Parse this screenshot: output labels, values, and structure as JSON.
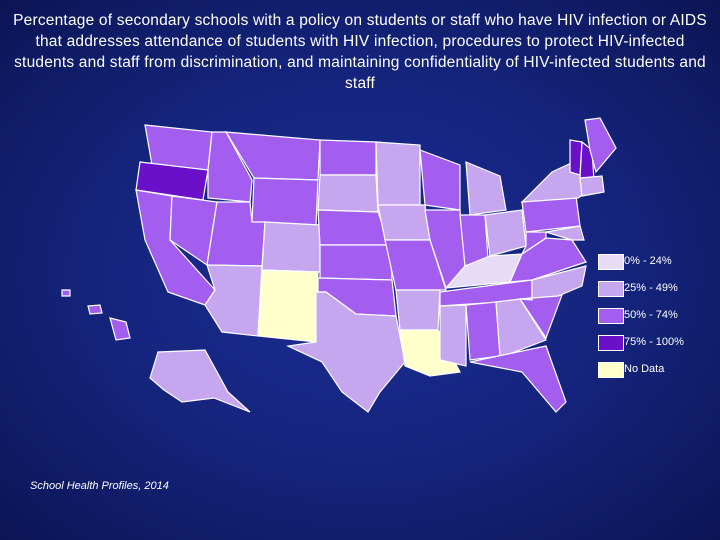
{
  "title": "Percentage of secondary schools with a policy on students or staff who have HIV infection or AIDS that addresses attendance of students with HIV infection, procedures to protect HIV-infected students and staff from discrimination, and maintaining confidentiality of HIV-infected students and staff",
  "legend": [
    {
      "label": "0% - 24%",
      "color": "#e6dcf7"
    },
    {
      "label": "25% - 49%",
      "color": "#c7a6f0"
    },
    {
      "label": "50% - 74%",
      "color": "#a35ef0"
    },
    {
      "label": "75% - 100%",
      "color": "#6a10c8"
    },
    {
      "label": "No Data",
      "color": "#ffffcc"
    }
  ],
  "source": "School Health Profiles, 2014"
}
